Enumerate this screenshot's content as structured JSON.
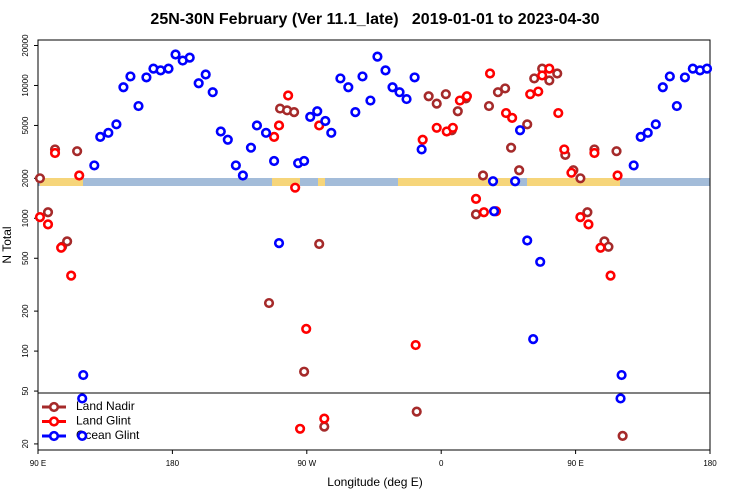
{
  "chart_data": {
    "type": "scatter",
    "title": "25N-30N February (Ver 11.1_late)   2019-01-01 to 2023-04-30",
    "xlabel": "Longitude (deg E)",
    "ylabel": "N Total",
    "xlim": [
      90,
      540
    ],
    "xticks": [
      {
        "value": 90,
        "label": "90 E"
      },
      180,
      {
        "value": 270,
        "label": "90 W"
      },
      {
        "value": 360,
        "label": "0"
      },
      {
        "value": 450,
        "label": "90 E"
      },
      {
        "value": 540,
        "label": "180"
      }
    ],
    "ylim": [
      18,
      22000
    ],
    "log_y": true,
    "yticks": [
      20,
      50,
      100,
      200,
      500,
      1000,
      2000,
      5000,
      10000,
      20000
    ],
    "legend": "lower left",
    "series": [
      {
        "name": "Land Nadir",
        "color": "#a52a2a",
        "x": [
          91.3,
          96.7,
          101.4,
          106.1,
          109.5,
          116.2,
          244.7,
          252.1,
          256.8,
          261.5,
          268.2,
          278.3,
          281.7,
          343.6,
          351.6,
          357,
          363.1,
          367.1,
          371.1,
          376.5,
          388,
          383.3,
          392,
          398,
          402.8,
          406.8,
          412.2,
          417.6,
          422.3,
          427.6,
          432.4,
          437.7,
          443.1,
          448.5,
          453.2,
          457.9,
          462.6,
          469.3,
          472,
          477.4,
          481.5
        ],
        "values": [
          2000,
          1110,
          3300,
          610,
          670,
          3200,
          230,
          6700,
          6500,
          6300,
          70,
          640,
          27,
          35,
          8300,
          7300,
          8600,
          4600,
          6400,
          8000,
          2100,
          1070,
          7000,
          8900,
          9500,
          3400,
          2300,
          5100,
          11300,
          13400,
          10900,
          12300,
          3000,
          2300,
          2000,
          1110,
          3300,
          670,
          610,
          3200,
          23
        ]
      },
      {
        "name": "Land Glint",
        "color": "#ff0000",
        "x": [
          91.3,
          96.7,
          101.4,
          105.5,
          112.2,
          117.6,
          248.1,
          251.4,
          257.5,
          262.2,
          265.5,
          269.6,
          278.3,
          281.7,
          342.9,
          347.6,
          357,
          363.7,
          367.8,
          372.5,
          377.2,
          383.3,
          388.6,
          392.7,
          396.7,
          403.4,
          407.5,
          419.6,
          425,
          427.6,
          432.4,
          438.4,
          442.4,
          447.2,
          453.2,
          458.6,
          462.6,
          466.7,
          473.4,
          478.1
        ],
        "values": [
          1020,
          900,
          3100,
          600,
          370,
          2100,
          4100,
          5000,
          8400,
          1700,
          26,
          147,
          5000,
          31,
          111,
          3900,
          4800,
          4500,
          4800,
          7700,
          8300,
          1400,
          1110,
          12300,
          1130,
          6200,
          5700,
          8600,
          9000,
          11900,
          13400,
          6200,
          3300,
          2200,
          1020,
          900,
          3100,
          600,
          370,
          2100
        ]
      },
      {
        "name": "Ocean Glint",
        "color": "#0000ff",
        "x": [
          120.3,
          119.6,
          119.6,
          127.7,
          131.7,
          137.1,
          142.5,
          147.2,
          151.9,
          157.3,
          162.6,
          167.3,
          172.1,
          177.4,
          182.1,
          186.9,
          191.6,
          197.6,
          202.3,
          207,
          212.4,
          217.1,
          222.5,
          227.2,
          232.6,
          236.6,
          242.7,
          248.1,
          251.4,
          264.2,
          268.2,
          272.3,
          277,
          282.4,
          286.4,
          292.5,
          297.8,
          302.5,
          307.3,
          312.6,
          317.3,
          322.7,
          327.4,
          332.1,
          336.8,
          342.2,
          346.9,
          394.7,
          395.4,
          409.5,
          412.8,
          417.6,
          421.6,
          426.3,
          480.8,
          480.1,
          488.9,
          493.6,
          498.3,
          503.7,
          508.4,
          513.1,
          517.8,
          523.2,
          528.5,
          533.3,
          538
        ],
        "values": [
          66,
          44,
          23,
          2500,
          4100,
          4400,
          5100,
          9700,
          11700,
          7000,
          11500,
          13400,
          13000,
          13400,
          17100,
          15400,
          16200,
          10400,
          12100,
          8900,
          4500,
          3900,
          2500,
          2100,
          3400,
          5000,
          4400,
          2700,
          650,
          2600,
          2700,
          5800,
          6400,
          5400,
          4400,
          11300,
          9700,
          6300,
          11700,
          7700,
          16500,
          13000,
          9700,
          8900,
          7900,
          11500,
          3300,
          1900,
          1130,
          1900,
          4600,
          680,
          123,
          470,
          66,
          44,
          2500,
          4100,
          4400,
          5100,
          9700,
          11700,
          7000,
          11500,
          13400,
          13000,
          13400
        ]
      }
    ]
  }
}
